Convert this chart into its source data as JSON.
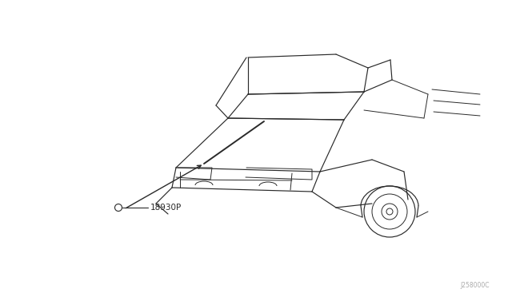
{
  "background_color": "#ffffff",
  "line_color": "#2a2a2a",
  "label_text": "18930P",
  "watermark_text": "J258000C",
  "label_fontsize": 7.5,
  "watermark_fontsize": 5.5,
  "fig_width": 6.4,
  "fig_height": 3.72,
  "dpi": 100
}
